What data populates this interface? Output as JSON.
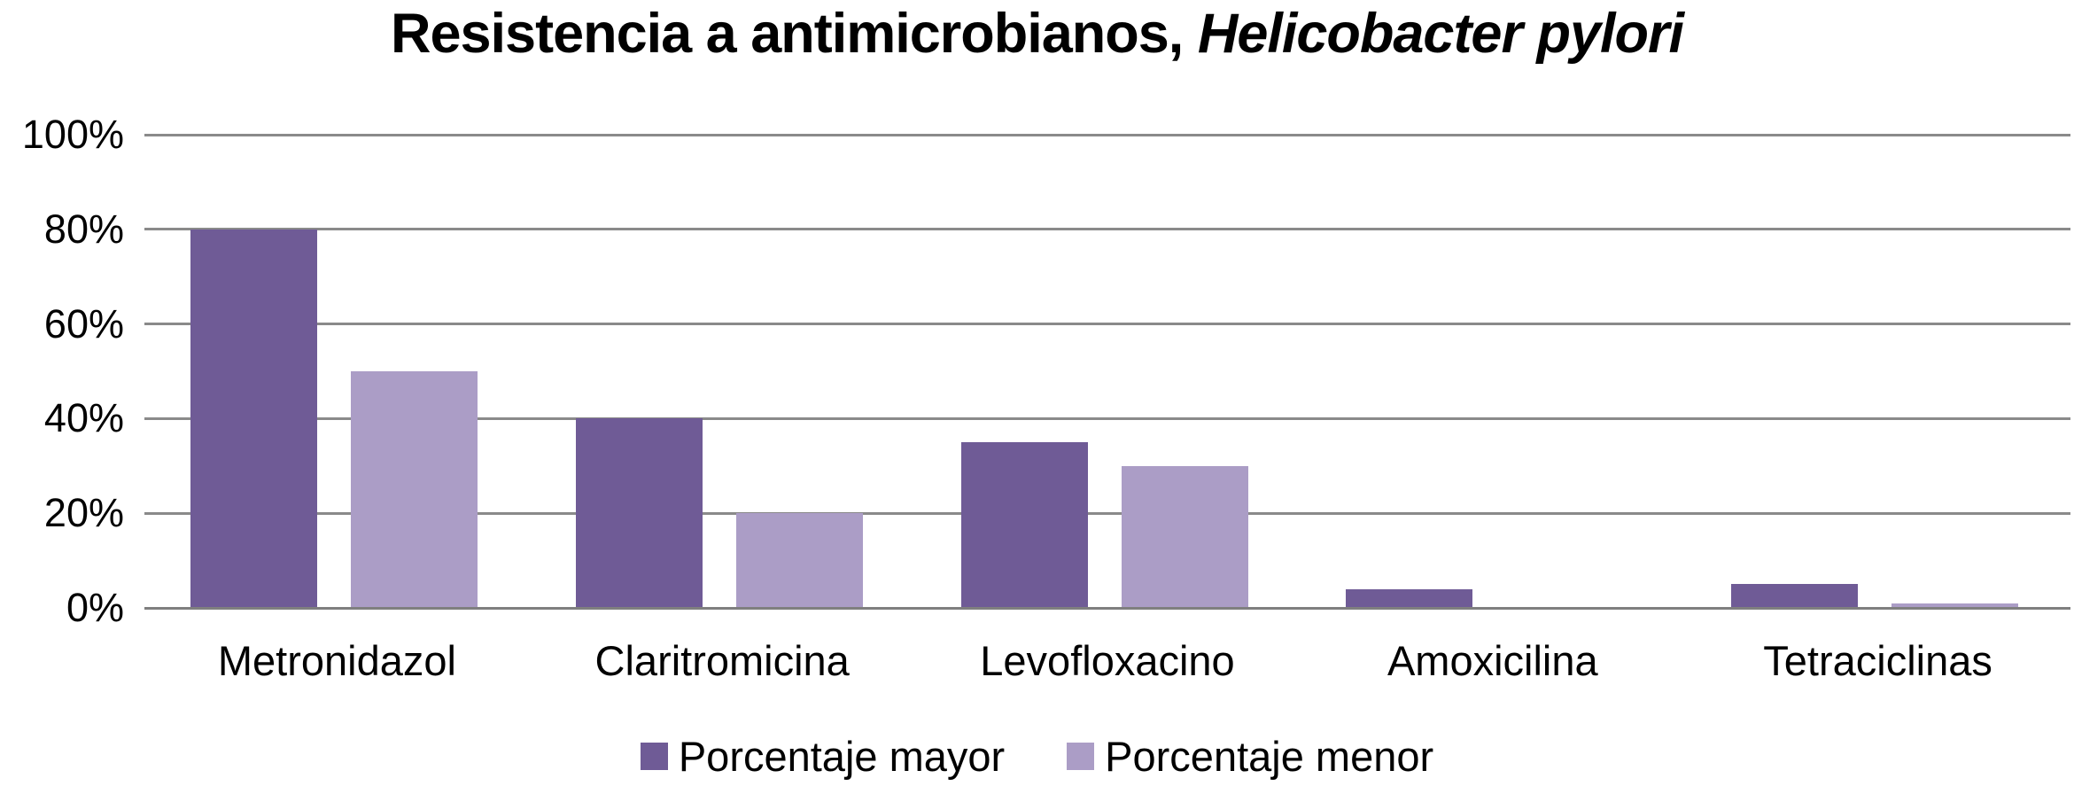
{
  "title": {
    "main": "Resistencia a antimicrobianos, ",
    "italic": "Helicobacter pylori"
  },
  "colors": {
    "series_mayor": "#6f5b96",
    "series_menor": "#ab9dc6",
    "gridline": "#8a8a8a",
    "axis_line": "#7f7f7f",
    "background": "#ffffff",
    "text": "#000000"
  },
  "chart_data": {
    "type": "bar",
    "title": "Resistencia a antimicrobianos, Helicobacter pylori",
    "xlabel": "",
    "ylabel": "",
    "categories": [
      "Metronidazol",
      "Claritromicina",
      "Levofloxacino",
      "Amoxicilina",
      "Tetraciclinas"
    ],
    "series": [
      {
        "name": "Porcentaje mayor",
        "color": "#6f5b96",
        "values": [
          80,
          40,
          35,
          4,
          5
        ]
      },
      {
        "name": "Porcentaje menor",
        "color": "#ab9dc6",
        "values": [
          50,
          20,
          30,
          0,
          1
        ]
      }
    ],
    "y_axis": {
      "min": 0,
      "max": 100,
      "unit": "%",
      "ticks": [
        {
          "value": 0,
          "label": "0%"
        },
        {
          "value": 20,
          "label": "20%"
        },
        {
          "value": 40,
          "label": "40%"
        },
        {
          "value": 60,
          "label": "60%"
        },
        {
          "value": 80,
          "label": "80%"
        },
        {
          "value": 100,
          "label": "100%"
        }
      ]
    },
    "grid": true,
    "legend_position": "bottom"
  }
}
